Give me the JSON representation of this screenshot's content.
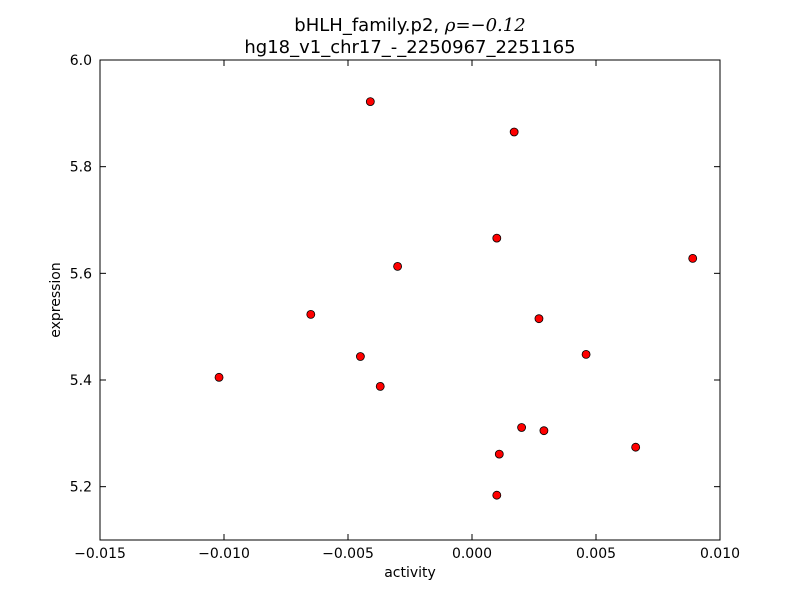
{
  "chart_data": {
    "type": "scatter",
    "title_line1_prefix": "bHLH_family.p2, ",
    "title_line1_formula": "ρ=−0.12",
    "title_line2": "hg18_v1_chr17_-_2250967_2251165",
    "xlabel": "activity",
    "ylabel": "expression",
    "xlim": [
      -0.015,
      0.01
    ],
    "ylim": [
      5.1,
      6.0
    ],
    "xticks": [
      -0.015,
      -0.01,
      -0.005,
      0.0,
      0.005,
      0.01
    ],
    "xtick_labels": [
      "−0.015",
      "−0.010",
      "−0.005",
      "0.000",
      "0.005",
      "0.010"
    ],
    "yticks": [
      5.2,
      5.4,
      5.6,
      5.8,
      6.0
    ],
    "ytick_labels": [
      "5.2",
      "5.4",
      "5.6",
      "5.8",
      "6.0"
    ],
    "grid": false,
    "marker_color": "#ff0000",
    "marker_edge_color": "#000000",
    "points": [
      {
        "x": -0.0041,
        "y": 5.922
      },
      {
        "x": 0.0017,
        "y": 5.865
      },
      {
        "x": 0.001,
        "y": 5.666
      },
      {
        "x": 0.0089,
        "y": 5.628
      },
      {
        "x": -0.003,
        "y": 5.613
      },
      {
        "x": -0.0065,
        "y": 5.523
      },
      {
        "x": 0.0027,
        "y": 5.515
      },
      {
        "x": 0.0046,
        "y": 5.448
      },
      {
        "x": -0.0045,
        "y": 5.444
      },
      {
        "x": -0.0102,
        "y": 5.405
      },
      {
        "x": -0.0037,
        "y": 5.388
      },
      {
        "x": 0.002,
        "y": 5.311
      },
      {
        "x": 0.0029,
        "y": 5.305
      },
      {
        "x": 0.0066,
        "y": 5.274
      },
      {
        "x": 0.0011,
        "y": 5.261
      },
      {
        "x": 0.001,
        "y": 5.184
      }
    ]
  }
}
